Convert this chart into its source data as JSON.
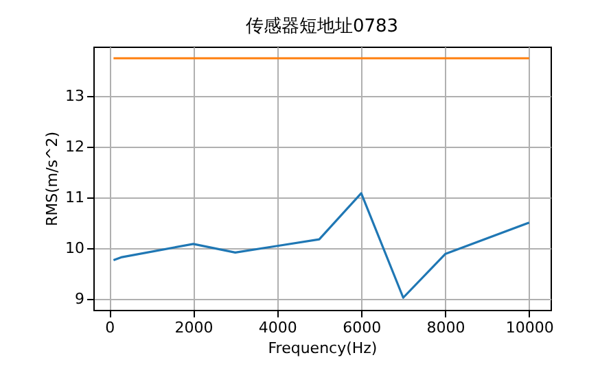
{
  "chart_data": {
    "type": "line",
    "title": "传感器短地址0783",
    "xlabel": "Frequency(Hz)",
    "ylabel": "RMS(m/s^2)",
    "xlim": [
      -380,
      10510
    ],
    "ylim": [
      8.78,
      13.97
    ],
    "xticks": [
      0,
      2000,
      4000,
      6000,
      8000,
      10000
    ],
    "yticks": [
      9,
      10,
      11,
      12,
      13
    ],
    "grid": true,
    "series": [
      {
        "color": "#1f77b4",
        "x": [
          100,
          300,
          2000,
          3000,
          4000,
          5000,
          6000,
          7000,
          8000,
          10000
        ],
        "values": [
          9.76,
          9.82,
          10.08,
          9.91,
          10.04,
          10.17,
          11.08,
          9.02,
          9.88,
          10.5
        ]
      },
      {
        "color": "#ff7f0e",
        "x": [
          100,
          10000
        ],
        "values": [
          13.74,
          13.74
        ]
      }
    ]
  }
}
